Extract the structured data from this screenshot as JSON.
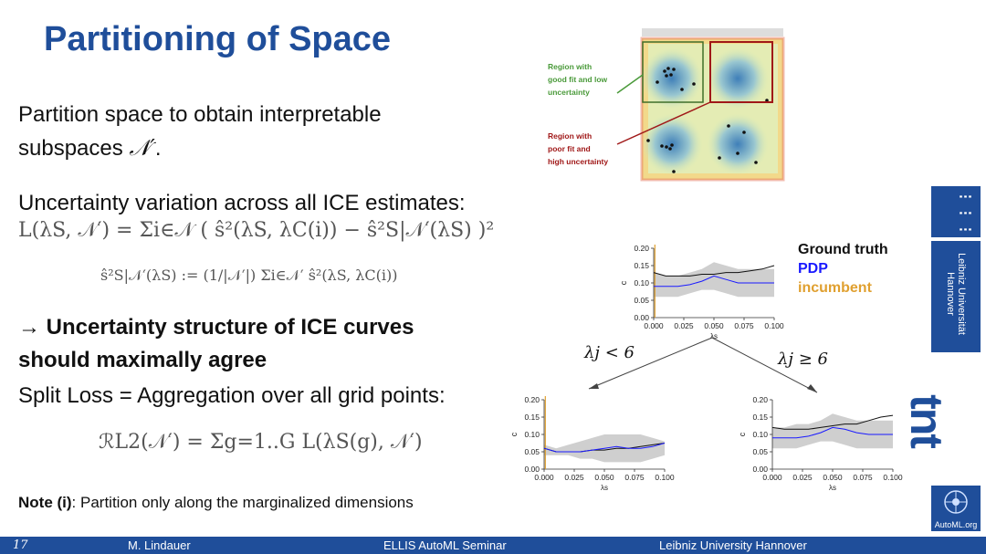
{
  "title": "Partitioning of Space",
  "para1": {
    "line1": "Partition space to obtain interpretable",
    "line2_prefix": "subspaces",
    "symbol": "𝒩′",
    "suffix": "."
  },
  "para2": {
    "text": "Uncertainty variation across all ICE estimates:"
  },
  "formula_main": {
    "lhs": "L (λ",
    "text": "L(λS, 𝒩′) = Σi∈𝒩 ( ŝ²(λS, λC(i)) − ŝ²S|𝒩′(λS) )²"
  },
  "formula_def": {
    "text": "ŝ²S|𝒩′(λS) := (1/|𝒩′|) Σi∈𝒩′ ŝ²(λS, λC(i))"
  },
  "bullet": {
    "line1": "→ Uncertainty structure of ICE curves",
    "line2": "should maximally agree"
  },
  "split_loss": {
    "text": "Split Loss = Aggregation over all grid points:"
  },
  "formula_risk": {
    "text": "ℛL2(𝒩′) = Σg=1..G L(λS(g), 𝒩′)"
  },
  "note": {
    "label": "Note (i)",
    "text": ": Partition only along the marginalized dimensions"
  },
  "heatmap": {
    "annot_green": [
      "Region with",
      "good fit and low",
      "uncertainty"
    ],
    "annot_red": [
      "Region with",
      "poor fit and",
      "high uncertainty"
    ]
  },
  "legend": {
    "ground_truth": "Ground truth",
    "pdp": "PDP",
    "incumbent": "incumbent"
  },
  "split_labels": {
    "left": "λj < 6",
    "right": "λj ≥ 6"
  },
  "colors": {
    "title": "#1f4e9a",
    "footer": "#1f4e9a",
    "pdp": "#1a1aff",
    "incumbent": "#e0a030",
    "green": "#4a9a3a",
    "red": "#a01818"
  },
  "footer": {
    "page": "17",
    "author": "M. Lindauer",
    "event": "ELLIS AutoML Seminar",
    "affiliation": "Leibniz University Hannover"
  },
  "sidebar": {
    "uni_name": "Leibniz Universität Hannover",
    "tnt": "tnt",
    "automl": "AutoML.org"
  },
  "chart_data": [
    {
      "type": "line",
      "title": "",
      "xlabel": "λs",
      "ylabel": "c",
      "xlim": [
        0,
        0.1
      ],
      "ylim": [
        0,
        0.2
      ],
      "xticks": [
        "0.000",
        "0.025",
        "0.050",
        "0.075",
        "0.100"
      ],
      "yticks": [
        "0.00",
        "0.05",
        "0.10",
        "0.15",
        "0.20"
      ],
      "incumbent_x": 0.001,
      "x": [
        0,
        0.01,
        0.02,
        0.03,
        0.04,
        0.05,
        0.06,
        0.07,
        0.08,
        0.09,
        0.1
      ],
      "series": [
        {
          "name": "Ground truth",
          "values": [
            0.13,
            0.12,
            0.12,
            0.12,
            0.125,
            0.125,
            0.13,
            0.13,
            0.135,
            0.14,
            0.15
          ]
        },
        {
          "name": "PDP",
          "values": [
            0.09,
            0.09,
            0.09,
            0.095,
            0.105,
            0.12,
            0.11,
            0.1,
            0.1,
            0.1,
            0.1
          ]
        }
      ],
      "band": {
        "lower": [
          0.06,
          0.06,
          0.06,
          0.07,
          0.08,
          0.08,
          0.07,
          0.06,
          0.06,
          0.06,
          0.06
        ],
        "upper": [
          0.13,
          0.12,
          0.12,
          0.13,
          0.14,
          0.16,
          0.15,
          0.14,
          0.14,
          0.14,
          0.14
        ]
      }
    },
    {
      "type": "line",
      "title": "",
      "xlabel": "λs",
      "ylabel": "c",
      "xlim": [
        0,
        0.1
      ],
      "ylim": [
        0,
        0.2
      ],
      "xticks": [
        "0.000",
        "0.025",
        "0.050",
        "0.075",
        "0.100"
      ],
      "yticks": [
        "0.00",
        "0.05",
        "0.10",
        "0.15",
        "0.20"
      ],
      "incumbent_x": 0.001,
      "x": [
        0,
        0.01,
        0.02,
        0.03,
        0.04,
        0.05,
        0.06,
        0.07,
        0.08,
        0.09,
        0.1
      ],
      "series": [
        {
          "name": "Ground truth",
          "values": [
            0.06,
            0.05,
            0.05,
            0.05,
            0.055,
            0.055,
            0.06,
            0.06,
            0.065,
            0.07,
            0.075
          ]
        },
        {
          "name": "PDP",
          "values": [
            0.06,
            0.05,
            0.05,
            0.05,
            0.055,
            0.06,
            0.065,
            0.06,
            0.06,
            0.065,
            0.075
          ]
        }
      ],
      "band": {
        "lower": [
          0.04,
          0.04,
          0.04,
          0.03,
          0.03,
          0.02,
          0.02,
          0.02,
          0.02,
          0.03,
          0.04
        ],
        "upper": [
          0.07,
          0.06,
          0.07,
          0.08,
          0.09,
          0.1,
          0.1,
          0.1,
          0.1,
          0.09,
          0.08
        ]
      }
    },
    {
      "type": "line",
      "title": "",
      "xlabel": "λs",
      "ylabel": "c",
      "xlim": [
        0,
        0.1
      ],
      "ylim": [
        0,
        0.2
      ],
      "xticks": [
        "0.000",
        "0.025",
        "0.050",
        "0.075",
        "0.100"
      ],
      "yticks": [
        "0.00",
        "0.05",
        "0.10",
        "0.15",
        "0.20"
      ],
      "x": [
        0,
        0.01,
        0.02,
        0.03,
        0.04,
        0.05,
        0.06,
        0.07,
        0.08,
        0.09,
        0.1
      ],
      "series": [
        {
          "name": "Ground truth",
          "values": [
            0.12,
            0.115,
            0.115,
            0.115,
            0.12,
            0.125,
            0.13,
            0.13,
            0.14,
            0.15,
            0.155
          ]
        },
        {
          "name": "PDP",
          "values": [
            0.09,
            0.09,
            0.09,
            0.095,
            0.105,
            0.12,
            0.115,
            0.105,
            0.1,
            0.1,
            0.1
          ]
        }
      ],
      "band": {
        "lower": [
          0.06,
          0.06,
          0.06,
          0.07,
          0.08,
          0.08,
          0.07,
          0.06,
          0.06,
          0.06,
          0.06
        ],
        "upper": [
          0.12,
          0.12,
          0.13,
          0.13,
          0.14,
          0.16,
          0.15,
          0.14,
          0.14,
          0.14,
          0.14
        ]
      }
    }
  ]
}
